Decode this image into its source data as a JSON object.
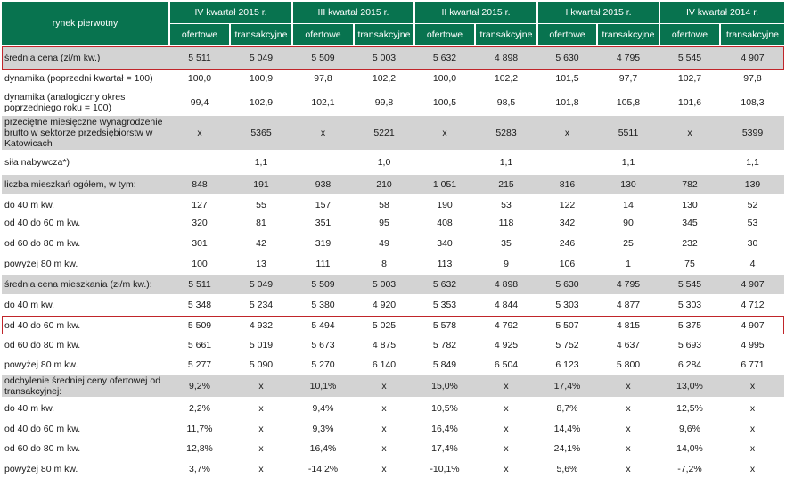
{
  "header": {
    "stub": "rynek pierwotny",
    "quarters": [
      "IV kwartał 2015 r.",
      "III kwartał 2015 r.",
      "II kwartał 2015 r.",
      "I kwartał 2015 r.",
      "IV kwartał 2014 r."
    ],
    "sub": [
      "ofertowe",
      "transakcyjne"
    ]
  },
  "rows": [
    {
      "label": "średnia cena (zł/m kw.)",
      "v": [
        "5 511",
        "5 049",
        "5 509",
        "5 003",
        "5 632",
        "4 898",
        "5 630",
        "4 795",
        "5 545",
        "4 907"
      ]
    },
    {
      "label": "dynamika (poprzedni kwartał = 100)",
      "v": [
        "100,0",
        "100,9",
        "97,8",
        "102,2",
        "100,0",
        "102,2",
        "101,5",
        "97,7",
        "102,7",
        "97,8"
      ]
    },
    {
      "label": "dynamika (analogiczny okres poprzedniego roku  = 100)",
      "v": [
        "99,4",
        "102,9",
        "102,1",
        "99,8",
        "100,5",
        "98,5",
        "101,8",
        "105,8",
        "101,6",
        "108,3"
      ]
    },
    {
      "label": "przeciętne miesięczne wynagrodzenie brutto w sektorze przedsiębiorstw w Katowicach",
      "v": [
        "x",
        "5365",
        "x",
        "5221",
        "x",
        "5283",
        "x",
        "5511",
        "x",
        "5399"
      ]
    },
    {
      "label": "siła nabywcza*)",
      "v": [
        "",
        "1,1",
        "",
        "1,0",
        "",
        "1,1",
        "",
        "1,1",
        "",
        "1,1"
      ]
    },
    {
      "label": "liczba mieszkań ogółem, w tym:",
      "v": [
        "848",
        "191",
        "938",
        "210",
        "1 051",
        "215",
        "816",
        "130",
        "782",
        "139"
      ]
    },
    {
      "label": "do 40 m kw.",
      "v": [
        "127",
        "55",
        "157",
        "58",
        "190",
        "53",
        "122",
        "14",
        "130",
        "52"
      ]
    },
    {
      "label": "od 40 do 60 m  kw.",
      "v": [
        "320",
        "81",
        "351",
        "95",
        "408",
        "118",
        "342",
        "90",
        "345",
        "53"
      ]
    },
    {
      "label": "od 60 do 80 m kw.",
      "v": [
        "301",
        "42",
        "319",
        "49",
        "340",
        "35",
        "246",
        "25",
        "232",
        "30"
      ]
    },
    {
      "label": "powyżej 80 m kw.",
      "v": [
        "100",
        "13",
        "111",
        "8",
        "113",
        "9",
        "106",
        "1",
        "75",
        "4"
      ]
    },
    {
      "label": "średnia cena mieszkania (zł/m kw.):",
      "v": [
        "5 511",
        "5 049",
        "5 509",
        "5 003",
        "5 632",
        "4 898",
        "5 630",
        "4 795",
        "5 545",
        "4 907"
      ]
    },
    {
      "label": "do 40 m kw.",
      "v": [
        "5 348",
        "5 234",
        "5 380",
        "4 920",
        "5 353",
        "4 844",
        "5 303",
        "4 877",
        "5 303",
        "4 712"
      ]
    },
    {
      "label": "od 40 do 60 m  kw.",
      "v": [
        "5 509",
        "4 932",
        "5 494",
        "5 025",
        "5 578",
        "4 792",
        "5 507",
        "4 815",
        "5 375",
        "4 907"
      ]
    },
    {
      "label": "od 60 do 80 m kw.",
      "v": [
        "5 661",
        "5 019",
        "5 673",
        "4 875",
        "5 782",
        "4 925",
        "5 752",
        "4 637",
        "5 693",
        "4 995"
      ]
    },
    {
      "label": "powyżej 80 m kw.",
      "v": [
        "5 277",
        "5 090",
        "5 270",
        "6 140",
        "5 849",
        "6 504",
        "6 123",
        "5 800",
        "6 284",
        "6 771"
      ]
    },
    {
      "label": "odchylenie średniej ceny ofertowej od transakcyjnej:",
      "v": [
        "9,2%",
        "x",
        "10,1%",
        "x",
        "15,0%",
        "x",
        "17,4%",
        "x",
        "13,0%",
        "x"
      ]
    },
    {
      "label": "do 40 m kw.",
      "v": [
        "2,2%",
        "x",
        "9,4%",
        "x",
        "10,5%",
        "x",
        "8,7%",
        "x",
        "12,5%",
        "x"
      ]
    },
    {
      "label": "od 40 do 60 m  kw.",
      "v": [
        "11,7%",
        "x",
        "9,3%",
        "x",
        "16,4%",
        "x",
        "14,4%",
        "x",
        "9,6%",
        "x"
      ]
    },
    {
      "label": "od 60 do 80 m kw.",
      "v": [
        "12,8%",
        "x",
        "16,4%",
        "x",
        "17,4%",
        "x",
        "24,1%",
        "x",
        "14,0%",
        "x"
      ]
    },
    {
      "label": "powyżej 80 m kw.",
      "v": [
        "3,7%",
        "x",
        "-14,2%",
        "x",
        "-10,1%",
        "x",
        "5,6%",
        "x",
        "-7,2%",
        "x"
      ]
    }
  ],
  "colors": {
    "header": "#08734f",
    "shade": "#d3d3d3",
    "highlight": "#c0252a"
  }
}
